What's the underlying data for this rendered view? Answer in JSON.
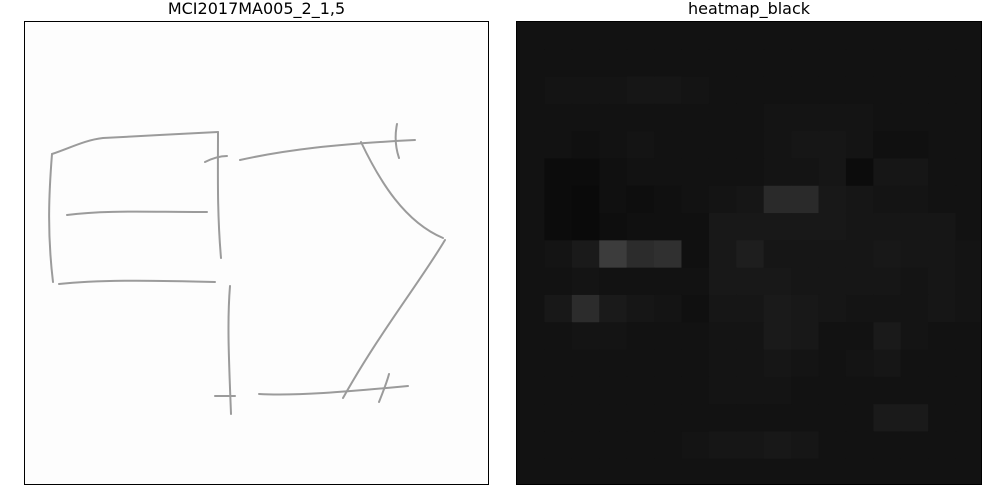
{
  "panels": {
    "left": {
      "title": "MCI2017MA005_2_1,5"
    },
    "right": {
      "title": "heatmap_black"
    }
  },
  "colors": {
    "drawing_background": "#fdfdfd",
    "stroke": "#8a8a8a",
    "heatmap_base": "#121212"
  },
  "heatmap": {
    "rows": 17,
    "cols": 17,
    "cells": [
      [
        18,
        18,
        18,
        18,
        18,
        18,
        18,
        18,
        18,
        18,
        18,
        18,
        18,
        18,
        18,
        18,
        18
      ],
      [
        18,
        18,
        18,
        18,
        18,
        18,
        18,
        18,
        18,
        18,
        18,
        18,
        18,
        18,
        18,
        18,
        18
      ],
      [
        18,
        20,
        20,
        20,
        22,
        22,
        20,
        18,
        18,
        18,
        18,
        18,
        18,
        18,
        18,
        18,
        18
      ],
      [
        18,
        18,
        18,
        18,
        18,
        18,
        18,
        18,
        18,
        20,
        20,
        20,
        20,
        18,
        18,
        18,
        18
      ],
      [
        18,
        18,
        16,
        18,
        20,
        18,
        18,
        18,
        18,
        20,
        22,
        22,
        20,
        16,
        16,
        18,
        18
      ],
      [
        18,
        12,
        12,
        16,
        18,
        18,
        18,
        18,
        18,
        20,
        20,
        22,
        12,
        22,
        22,
        18,
        18
      ],
      [
        18,
        12,
        10,
        16,
        14,
        16,
        18,
        20,
        22,
        42,
        42,
        24,
        22,
        20,
        20,
        18,
        18
      ],
      [
        18,
        12,
        10,
        14,
        16,
        16,
        16,
        24,
        24,
        24,
        24,
        24,
        22,
        22,
        22,
        22,
        18
      ],
      [
        18,
        20,
        26,
        60,
        44,
        48,
        16,
        24,
        30,
        22,
        22,
        22,
        22,
        24,
        22,
        22,
        20
      ],
      [
        18,
        18,
        20,
        18,
        18,
        18,
        18,
        24,
        24,
        24,
        22,
        22,
        22,
        22,
        20,
        22,
        20
      ],
      [
        18,
        24,
        44,
        26,
        22,
        20,
        16,
        22,
        22,
        26,
        24,
        22,
        20,
        20,
        20,
        22,
        20
      ],
      [
        18,
        18,
        20,
        20,
        18,
        18,
        18,
        20,
        20,
        26,
        24,
        18,
        18,
        26,
        20,
        18,
        18
      ],
      [
        18,
        18,
        18,
        18,
        18,
        18,
        18,
        20,
        20,
        22,
        20,
        18,
        20,
        22,
        18,
        18,
        18
      ],
      [
        18,
        18,
        18,
        18,
        18,
        18,
        18,
        20,
        20,
        20,
        18,
        18,
        18,
        18,
        18,
        18,
        18
      ],
      [
        18,
        18,
        18,
        18,
        18,
        18,
        18,
        18,
        18,
        18,
        18,
        18,
        18,
        26,
        26,
        18,
        18
      ],
      [
        18,
        18,
        18,
        18,
        18,
        18,
        20,
        22,
        22,
        24,
        22,
        18,
        18,
        18,
        18,
        18,
        18
      ],
      [
        18,
        18,
        18,
        18,
        18,
        18,
        18,
        18,
        18,
        18,
        18,
        18,
        18,
        18,
        18,
        18,
        18
      ]
    ]
  }
}
